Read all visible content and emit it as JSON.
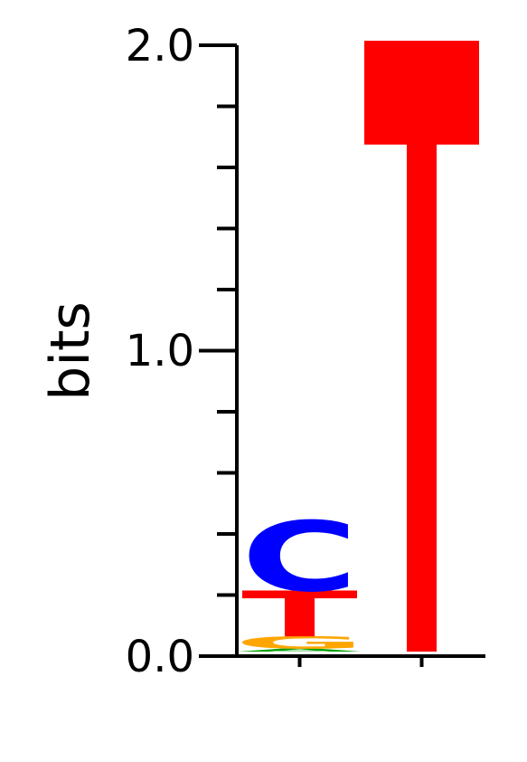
{
  "chart_data": {
    "type": "sequence-logo",
    "title": "",
    "xlabel": "",
    "ylabel": "bits",
    "ylim": [
      0,
      2.0
    ],
    "y_tick_labels": [
      "2.0",
      "1.0",
      "0.0"
    ],
    "y_minor_step": 0.2,
    "colors": {
      "A": "#00a000",
      "C": "#0000ff",
      "G": "#ffa500",
      "T": "#ff0000"
    },
    "positions": [
      {
        "stack": [
          {
            "letter": "A",
            "height": 0.01
          },
          {
            "letter": "G",
            "height": 0.04
          },
          {
            "letter": "T",
            "height": 0.15
          },
          {
            "letter": "C",
            "height": 0.23
          }
        ]
      },
      {
        "stack": [
          {
            "letter": "T",
            "height": 2.0
          }
        ]
      }
    ]
  }
}
